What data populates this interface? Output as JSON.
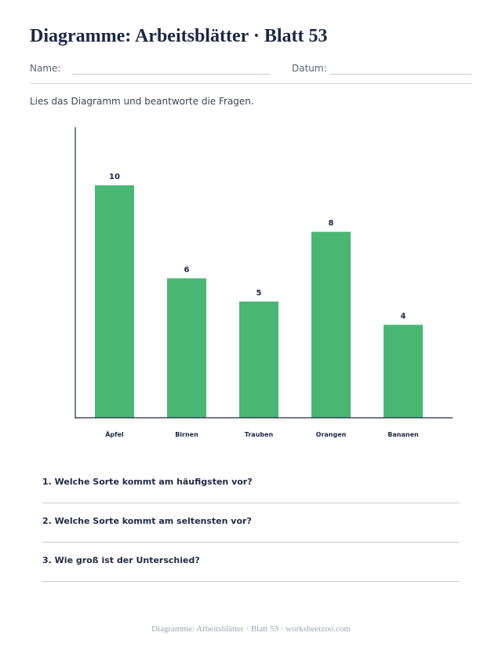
{
  "header": {
    "title": "Diagramme: Arbeitsblätter · Blatt 53",
    "name_label": "Name:",
    "date_label": "Datum:"
  },
  "instruction": "Lies das Diagramm und beantworte die Fragen.",
  "colors": {
    "bar": "#4ab673",
    "axis": "#1f2a44",
    "text": "#1c2744"
  },
  "chart_data": {
    "type": "bar",
    "categories": [
      "Äpfel",
      "Birnen",
      "Trauben",
      "Orangen",
      "Bananen"
    ],
    "values": [
      10,
      6,
      5,
      8,
      4
    ],
    "title": "",
    "xlabel": "",
    "ylabel": "",
    "ylim": [
      0,
      12.5
    ],
    "grid": false
  },
  "questions": [
    "1. Welche Sorte kommt am häufigsten vor?",
    "2. Welche Sorte kommt am seltensten vor?",
    "3. Wie groß ist der Unterschied?"
  ],
  "footer": "Diagramme: Arbeitsblätter · Blatt 53 · worksheetzoo.com"
}
